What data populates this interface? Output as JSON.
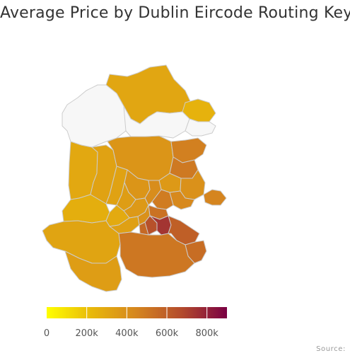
{
  "title": "Average Price by Dublin Eircode Routing Key",
  "credits": "Source:",
  "colors": {
    "scale_min": "#ffff00",
    "scale_max": "#7a0043",
    "no_data": "#f7f7f7",
    "border": "#cccccc"
  },
  "chart_data": {
    "type": "heatmap",
    "subtype": "choropleth",
    "title": "Average Price by Dublin Eircode Routing Key",
    "color_axis": {
      "min": 0,
      "max": 900000,
      "tick_labels": [
        "0",
        "200k",
        "400k",
        "600k",
        "800k"
      ],
      "tick_values": [
        0,
        200000,
        400000,
        600000,
        800000
      ]
    },
    "regions": [
      {
        "shade": 0.34
      },
      {
        "shade": 0.28
      },
      {
        "shade": 0.33
      },
      {
        "shade": 0.36
      },
      {
        "shade": 0.42
      },
      {
        "shade": null
      },
      {
        "shade": null
      },
      {
        "shade": null
      },
      {
        "shade": 0.52
      },
      {
        "shade": 0.55
      },
      {
        "shade": 0.4
      },
      {
        "shade": 0.44
      },
      {
        "shade": 0.48
      },
      {
        "shade": 0.5
      },
      {
        "shade": 0.54
      },
      {
        "shade": 0.58
      },
      {
        "shade": 0.42
      },
      {
        "shade": 0.46
      },
      {
        "shade": 0.3
      },
      {
        "shade": 0.36
      },
      {
        "shade": 0.38
      },
      {
        "shade": 0.4
      },
      {
        "shade": 0.32
      },
      {
        "shade": 0.37
      },
      {
        "shade": 0.44
      },
      {
        "shade": 0.62
      },
      {
        "shade": 0.72
      },
      {
        "shade": 0.82
      },
      {
        "shade": 0.66
      },
      {
        "shade": 0.6
      },
      {
        "shade": 0.35
      },
      {
        "shade": 0.38
      },
      {
        "shade": 0.56
      }
    ],
    "legend": "bottom",
    "credits": "Source:"
  }
}
